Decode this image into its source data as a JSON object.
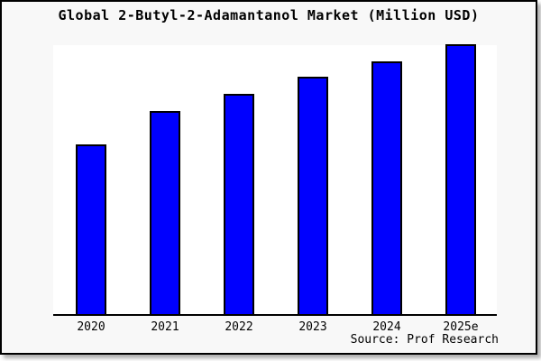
{
  "title": "Global 2-Butyl-2-Adamantanol Market (Million USD)",
  "source_note": "Source: Prof Research",
  "colors": {
    "bar_fill": "#0000fe",
    "bar_border": "#000000",
    "canvas_background": "#f8f8f8",
    "plot_background": "#ffffff",
    "axis_line": "#000000",
    "frame_border": "#000000"
  },
  "chart_data": {
    "type": "bar",
    "title": "Global 2-Butyl-2-Adamantanol Market (Million USD)",
    "categories": [
      "2020",
      "2021",
      "2022",
      "2023",
      "2024",
      "2025e"
    ],
    "values_pct_of_max": [
      62.8,
      75.2,
      81.5,
      87.8,
      93.8,
      100
    ],
    "xlabel": "",
    "ylabel": "",
    "y_axis_visible": false,
    "value_labels_visible": false,
    "grid": false,
    "legend": false,
    "bar_color": "#0000fe",
    "source": "Source: Prof Research"
  }
}
